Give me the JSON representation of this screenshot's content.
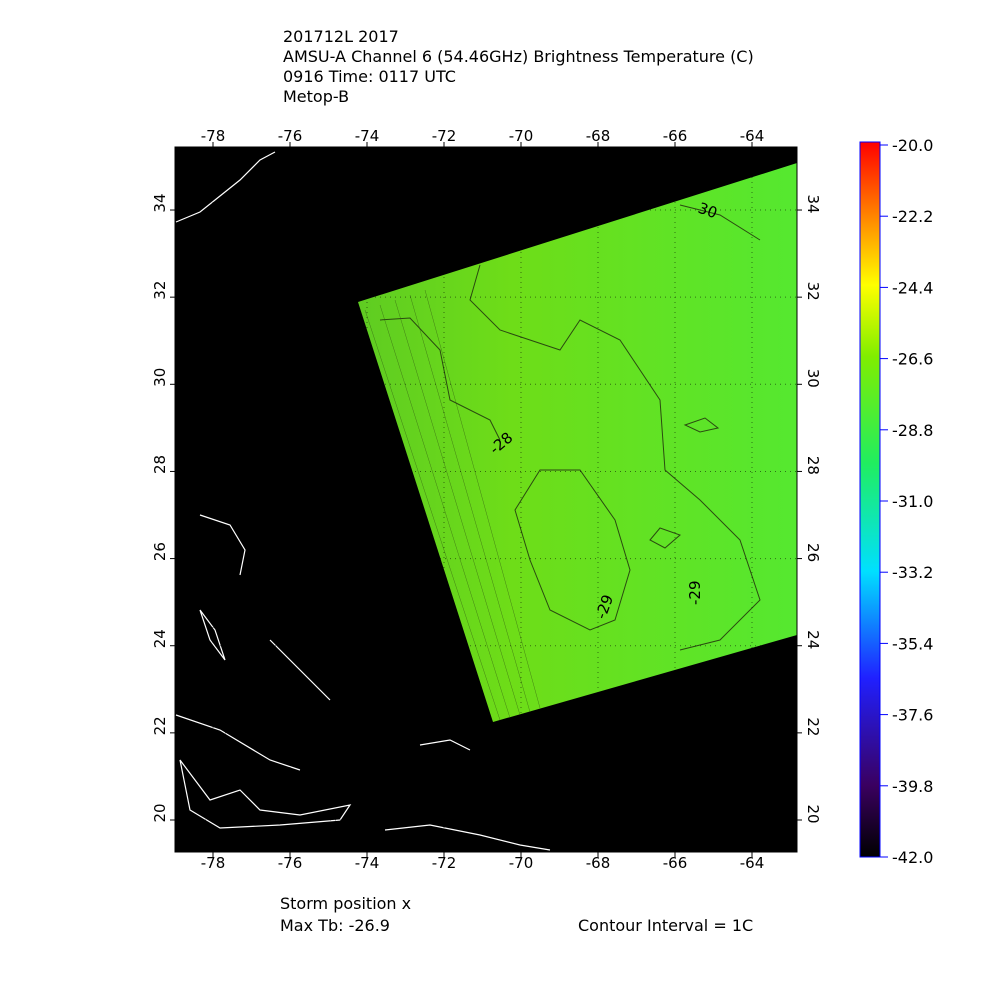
{
  "header": {
    "lines": [
      "201712L 2017",
      "AMSU-A Channel 6 (54.46GHz) Brightness Temperature (C)",
      "0916 Time: 0117 UTC",
      "Metop-B"
    ]
  },
  "map": {
    "lon_labels": [
      "-78",
      "-76",
      "-74",
      "-72",
      "-70",
      "-68",
      "-66",
      "-64"
    ],
    "lat_labels": [
      "20",
      "22",
      "24",
      "26",
      "28",
      "30",
      "32",
      "34"
    ],
    "contour_labels": [
      "30",
      "-28",
      "-29",
      "-29"
    ]
  },
  "colorbar": {
    "labels": [
      "-20.0",
      "-22.2",
      "-24.4",
      "-26.6",
      "-28.8",
      "-31.0",
      "-33.2",
      "-35.4",
      "-37.6",
      "-39.8",
      "-42.0"
    ]
  },
  "footer": {
    "storm_position": "Storm position x",
    "max_tb": "Max Tb: -26.9",
    "contour_interval": "Contour Interval = 1C"
  }
}
